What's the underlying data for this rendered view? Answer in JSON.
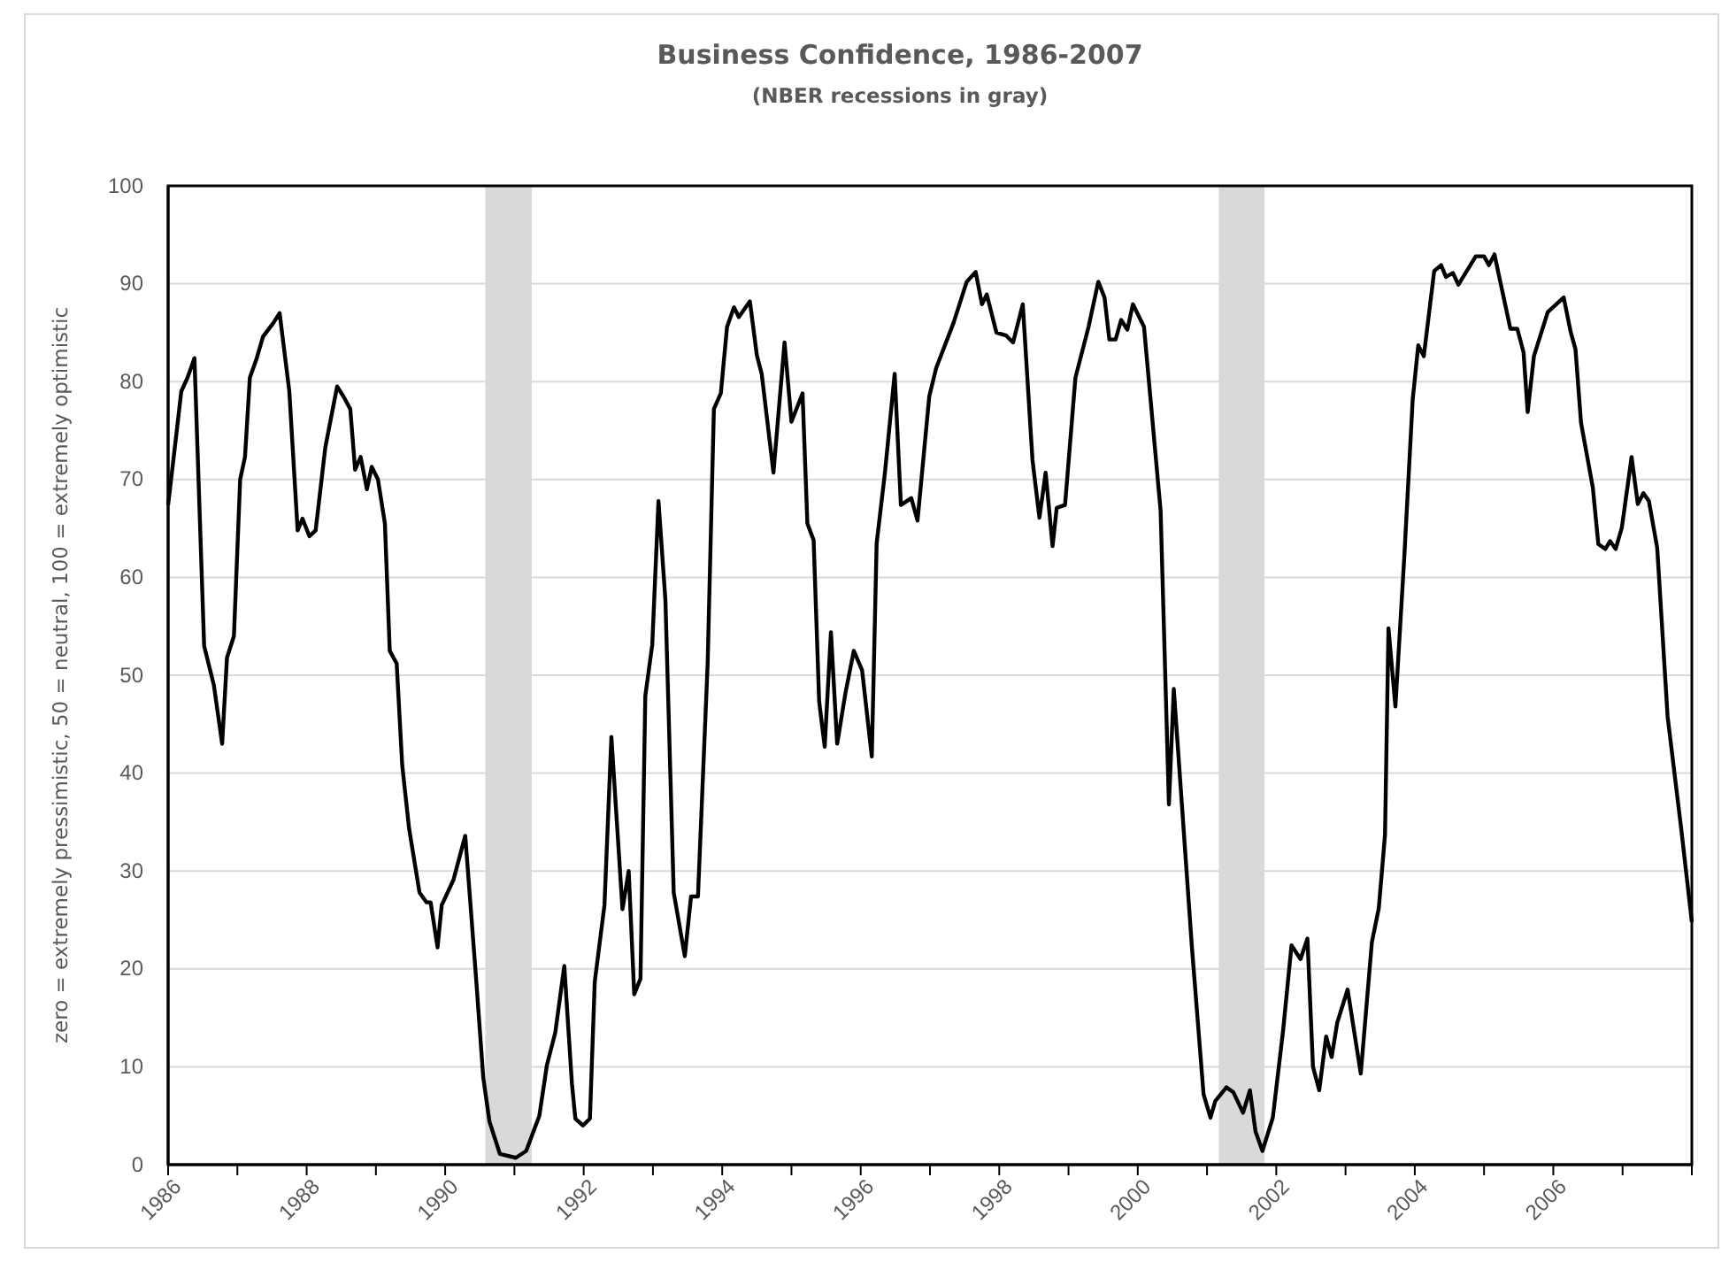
{
  "chart_data": {
    "type": "line",
    "title": "Business Confidence, 1986-2007",
    "subtitle": "(NBER recessions in gray)",
    "ylabel": "zero = extremely pressimistic, 50 = neutral, 100 = extremely optimistic",
    "xlim": [
      1986,
      2008
    ],
    "ylim": [
      0,
      100
    ],
    "xticks": [
      1986,
      {
        "value": 1987,
        "label": null
      },
      1988,
      {
        "value": 1989,
        "label": null
      },
      1990,
      {
        "value": 1991,
        "label": null
      },
      1992,
      {
        "value": 1993,
        "label": null
      },
      1994,
      {
        "value": 1995,
        "label": null
      },
      1996,
      {
        "value": 1997,
        "label": null
      },
      1998,
      {
        "value": 1999,
        "label": null
      },
      2000,
      {
        "value": 2001,
        "label": null
      },
      2002,
      {
        "value": 2003,
        "label": null
      },
      2004,
      {
        "value": 2005,
        "label": null
      },
      2006,
      {
        "value": 2007,
        "label": null
      },
      {
        "value": 2008,
        "label": null
      }
    ],
    "yticks": [
      0,
      10,
      20,
      30,
      40,
      50,
      60,
      70,
      80,
      90,
      100
    ],
    "grid": "y",
    "line_style": "solid",
    "marker": "none",
    "bands": [
      {
        "axis": "x",
        "from": 1990.58,
        "to": 1991.25,
        "color": "#d9d9d9"
      },
      {
        "axis": "x",
        "from": 2001.17,
        "to": 2001.83,
        "color": "#d9d9d9"
      }
    ],
    "series": [
      {
        "color": "#000000",
        "x": [
          1986.0,
          1986.14,
          1986.19,
          1986.28,
          1986.38,
          1986.52,
          1986.66,
          1986.78,
          1986.85,
          1986.95,
          1987.04,
          1987.11,
          1987.18,
          1987.28,
          1987.37,
          1987.52,
          1987.61,
          1987.75,
          1987.87,
          1987.94,
          1988.04,
          1988.13,
          1988.27,
          1988.44,
          1988.53,
          1988.63,
          1988.7,
          1988.78,
          1988.87,
          1988.94,
          1989.03,
          1989.13,
          1989.2,
          1989.3,
          1989.38,
          1989.48,
          1989.63,
          1989.73,
          1989.79,
          1989.89,
          1989.95,
          1990.12,
          1990.29,
          1990.45,
          1990.55,
          1990.64,
          1990.79,
          1991.02,
          1991.17,
          1991.36,
          1991.47,
          1991.59,
          1991.72,
          1991.83,
          1991.88,
          1991.99,
          1992.09,
          1992.16,
          1992.3,
          1992.4,
          1992.56,
          1992.65,
          1992.73,
          1992.82,
          1992.89,
          1992.99,
          1993.08,
          1993.18,
          1993.3,
          1993.46,
          1993.55,
          1993.65,
          1993.79,
          1993.88,
          1993.98,
          1994.07,
          1994.17,
          1994.24,
          1994.4,
          1994.5,
          1994.57,
          1994.74,
          1994.9,
          1995.0,
          1995.16,
          1995.23,
          1995.32,
          1995.4,
          1995.48,
          1995.57,
          1995.66,
          1995.78,
          1995.9,
          1996.02,
          1996.16,
          1996.23,
          1996.35,
          1996.49,
          1996.58,
          1996.73,
          1996.82,
          1996.99,
          1997.09,
          1997.34,
          1997.53,
          1997.66,
          1997.75,
          1997.82,
          1997.96,
          1998.1,
          1998.2,
          1998.34,
          1998.48,
          1998.58,
          1998.67,
          1998.77,
          1998.83,
          1998.95,
          1999.1,
          1999.29,
          1999.43,
          1999.52,
          1999.59,
          1999.68,
          1999.76,
          1999.85,
          1999.93,
          2000.09,
          2000.33,
          2000.45,
          2000.52,
          2000.78,
          2000.95,
          2001.05,
          2001.12,
          2001.28,
          2001.38,
          2001.52,
          2001.62,
          2001.7,
          2001.8,
          2001.95,
          2002.1,
          2002.22,
          2002.35,
          2002.45,
          2002.53,
          2002.62,
          2002.72,
          2002.8,
          2002.88,
          2003.03,
          2003.22,
          2003.38,
          2003.48,
          2003.57,
          2003.62,
          2003.72,
          2003.85,
          2003.97,
          2004.05,
          2004.13,
          2004.28,
          2004.38,
          2004.45,
          2004.55,
          2004.63,
          2004.88,
          2005.0,
          2005.07,
          2005.15,
          2005.38,
          2005.48,
          2005.57,
          2005.63,
          2005.72,
          2005.92,
          2006.15,
          2006.25,
          2006.32,
          2006.4,
          2006.57,
          2006.65,
          2006.75,
          2006.82,
          2006.9,
          2006.99,
          2007.13,
          2007.22,
          2007.3,
          2007.38,
          2007.5,
          2007.65,
          2007.85,
          2008.0
        ],
        "values": [
          67.4,
          75.9,
          79,
          80.4,
          82.4,
          53,
          49,
          43,
          51.8,
          54,
          70,
          72.3,
          80.4,
          82.4,
          84.6,
          86,
          87,
          79,
          64.8,
          66,
          64.2,
          64.8,
          73.3,
          79.5,
          78.5,
          77.2,
          71,
          72.3,
          69,
          71.3,
          70,
          65.5,
          52.5,
          51.2,
          40.8,
          34.3,
          27.8,
          26.8,
          26.8,
          22.2,
          26.5,
          29.1,
          33.6,
          18.7,
          8.9,
          4.4,
          1.1,
          0.7,
          1.4,
          5,
          10.2,
          13.5,
          20.3,
          8.3,
          4.7,
          4,
          4.7,
          18.7,
          26.5,
          43.7,
          26.1,
          30,
          17.4,
          19,
          47.9,
          53.1,
          67.8,
          57.7,
          27.8,
          21.3,
          27.4,
          27.4,
          51.2,
          77.2,
          78.8,
          85.6,
          87.6,
          86.6,
          88.2,
          82.7,
          80.8,
          70.7,
          84,
          75.9,
          78.8,
          65.5,
          63.8,
          47.3,
          42.7,
          54.4,
          43,
          48.2,
          52.5,
          50.5,
          41.7,
          63.5,
          70.7,
          80.8,
          67.4,
          68.1,
          65.8,
          78.5,
          81.4,
          86,
          90.2,
          91.2,
          87.9,
          88.9,
          85,
          84.7,
          84,
          87.9,
          72,
          66.1,
          70.7,
          63.2,
          67.1,
          67.4,
          80.4,
          85.6,
          90.2,
          88.6,
          84.3,
          84.3,
          86.3,
          85.3,
          87.9,
          85.6,
          66.8,
          36.8,
          48.6,
          22.4,
          7.2,
          4.8,
          6.5,
          7.9,
          7.4,
          5.3,
          7.6,
          3.4,
          1.4,
          4.8,
          13.8,
          22.4,
          21,
          23.1,
          10,
          7.6,
          13.1,
          11,
          14.5,
          17.9,
          9.3,
          22.7,
          26.2,
          33.7,
          54.8,
          46.8,
          62.3,
          78.2,
          83.7,
          82.6,
          91.3,
          91.9,
          90.7,
          91.1,
          89.9,
          92.8,
          92.8,
          91.9,
          93,
          85.4,
          85.4,
          83,
          76.9,
          82.6,
          87.1,
          88.6,
          85.1,
          83.3,
          75.8,
          69.2,
          63.4,
          62.9,
          63.7,
          62.9,
          65.1,
          72.3,
          67.5,
          68.6,
          67.8,
          63,
          45.8,
          34.1,
          24.8
        ]
      }
    ]
  }
}
